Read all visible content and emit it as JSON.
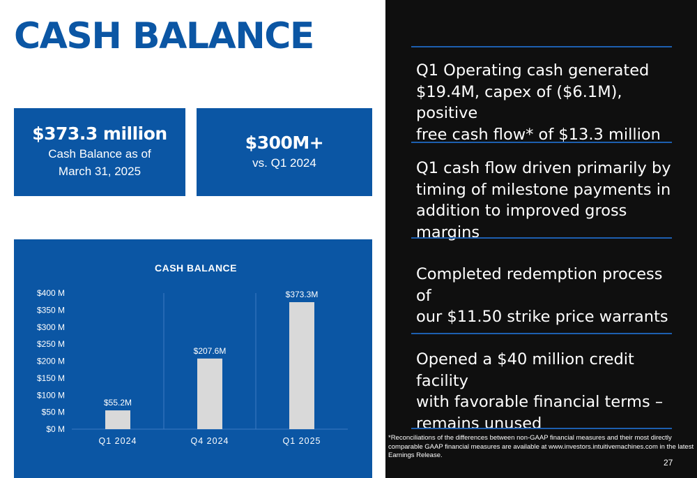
{
  "title": "CASH BALANCE",
  "cards": [
    {
      "value": "$373.3 million",
      "desc_line1": "Cash Balance as of",
      "desc_line2": "March 31, 2025"
    },
    {
      "value": "$300M+",
      "desc_line1": "vs. Q1 2024",
      "desc_line2": ""
    }
  ],
  "chart_data": {
    "type": "bar",
    "title": "CASH BALANCE",
    "categories": [
      "Q1 2024",
      "Q4 2024",
      "Q1 2025"
    ],
    "values": [
      55.2,
      207.6,
      373.3
    ],
    "data_labels": [
      "$55.2M",
      "$207.6M",
      "$373.3M"
    ],
    "ylim": [
      0,
      400
    ],
    "yticks": [
      0,
      50,
      100,
      150,
      200,
      250,
      300,
      350,
      400
    ],
    "ytick_labels": [
      "$0 M",
      "$50 M",
      "$100 M",
      "$150 M",
      "$200 M",
      "$250 M",
      "$300 M",
      "$350 M",
      "$400 M"
    ],
    "grid": true,
    "bar_color": "#d9d9d9"
  },
  "bullets": [
    {
      "lines": [
        "Q1 Operating cash generated",
        "$19.4M, capex of ($6.1M), positive",
        "free cash flow* of $13.3 million"
      ]
    },
    {
      "lines": [
        "Q1 cash flow driven primarily by",
        "timing of milestone payments in",
        "addition to improved gross margins"
      ]
    },
    {
      "lines": [
        "Completed redemption process of",
        "our $11.50 strike price warrants"
      ]
    },
    {
      "lines": [
        "Opened a $40 million credit facility",
        "with favorable financial terms –",
        "remains unused"
      ]
    }
  ],
  "footnote": {
    "line1": "*Reconciliations of the differences between non-GAAP financial measures and their most directly",
    "line2": "comparable GAAP financial measures are available at www.investors.intuitivemachines.com in the latest",
    "line3": "Earnings Release."
  },
  "page_number": "27",
  "colors": {
    "brand_blue": "#0b56a4",
    "dark_bg": "#0f0f0f",
    "rule_blue": "#1d5fb0"
  }
}
